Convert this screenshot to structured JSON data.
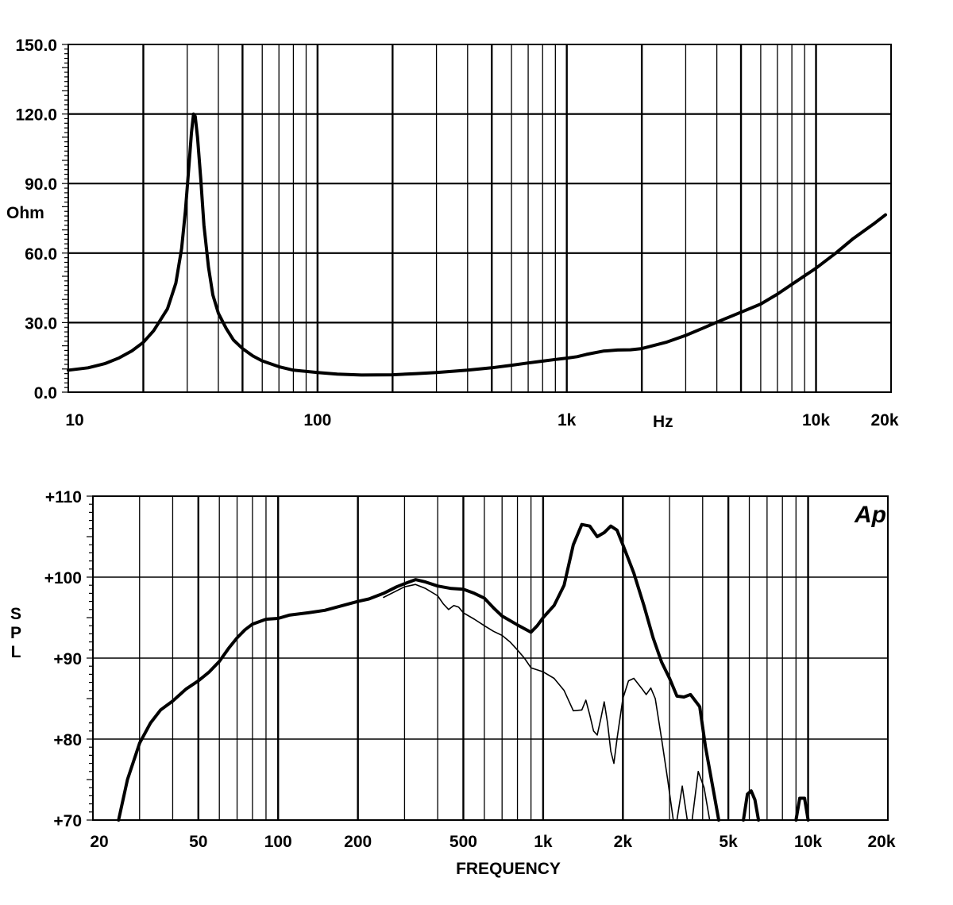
{
  "chart_data": [
    {
      "type": "line",
      "title": "",
      "ylabel": "Ohm",
      "xlabel": "Hz",
      "xscale": "log",
      "xlim": [
        10,
        20000
      ],
      "ylim": [
        0,
        150
      ],
      "yticks": [
        {
          "value": 0,
          "label": "0.0"
        },
        {
          "value": 30,
          "label": "30.0"
        },
        {
          "value": 60,
          "label": "60.0"
        },
        {
          "value": 90,
          "label": "90.0"
        },
        {
          "value": 120,
          "label": "120.0"
        },
        {
          "value": 150,
          "label": "150.0"
        }
      ],
      "xticks": [
        {
          "value": 10,
          "label": "10"
        },
        {
          "value": 100,
          "label": "100"
        },
        {
          "value": 1000,
          "label": "1k"
        },
        {
          "value": 10000,
          "label": "10k"
        },
        {
          "value": 20000,
          "label": "20k"
        }
      ],
      "grid": true,
      "series": [
        {
          "line_weight": "thick",
          "points": [
            [
              10,
              9.5
            ],
            [
              12,
              10.5
            ],
            [
              14,
              12.3
            ],
            [
              16,
              14.8
            ],
            [
              18,
              17.8
            ],
            [
              20,
              21.5
            ],
            [
              22,
              26.5
            ],
            [
              25,
              36
            ],
            [
              27,
              47
            ],
            [
              28.5,
              62
            ],
            [
              29.5,
              78
            ],
            [
              30.5,
              98
            ],
            [
              31.2,
              112
            ],
            [
              31.8,
              120
            ],
            [
              32.3,
              119
            ],
            [
              33,
              110
            ],
            [
              34,
              92
            ],
            [
              35,
              72
            ],
            [
              36.5,
              54
            ],
            [
              38,
              42
            ],
            [
              40,
              34
            ],
            [
              43,
              27.5
            ],
            [
              46,
              22.5
            ],
            [
              50,
              18.8
            ],
            [
              55,
              15.6
            ],
            [
              60,
              13.5
            ],
            [
              70,
              11
            ],
            [
              80,
              9.5
            ],
            [
              100,
              8.5
            ],
            [
              120,
              7.8
            ],
            [
              150,
              7.4
            ],
            [
              200,
              7.5
            ],
            [
              250,
              8
            ],
            [
              300,
              8.5
            ],
            [
              400,
              9.5
            ],
            [
              500,
              10.5
            ],
            [
              600,
              11.6
            ],
            [
              700,
              12.6
            ],
            [
              800,
              13.4
            ],
            [
              900,
              14.1
            ],
            [
              1000,
              14.7
            ],
            [
              1100,
              15.3
            ],
            [
              1200,
              16.3
            ],
            [
              1400,
              17.7
            ],
            [
              1600,
              18.2
            ],
            [
              1800,
              18.3
            ],
            [
              2000,
              18.8
            ],
            [
              2500,
              21.5
            ],
            [
              3000,
              24.5
            ],
            [
              3500,
              27.5
            ],
            [
              4000,
              30.2
            ],
            [
              5000,
              34.5
            ],
            [
              6000,
              38
            ],
            [
              7000,
              42.3
            ],
            [
              8000,
              46.5
            ],
            [
              10000,
              53.5
            ],
            [
              12000,
              60
            ],
            [
              14000,
              66
            ],
            [
              17000,
              72.5
            ],
            [
              19000,
              76.5
            ]
          ]
        }
      ]
    },
    {
      "type": "line",
      "title": "",
      "ylabel": "SPL",
      "xlabel": "FREQUENCY",
      "xscale": "log",
      "xlim": [
        20,
        20000
      ],
      "ylim": [
        70,
        110
      ],
      "yticks": [
        {
          "value": 70,
          "label": "+70"
        },
        {
          "value": 80,
          "label": "+80"
        },
        {
          "value": 90,
          "label": "+90"
        },
        {
          "value": 100,
          "label": "+100"
        },
        {
          "value": 110,
          "label": "+110"
        }
      ],
      "xticks": [
        {
          "value": 20,
          "label": "20"
        },
        {
          "value": 50,
          "label": "50"
        },
        {
          "value": 100,
          "label": "100"
        },
        {
          "value": 200,
          "label": "200"
        },
        {
          "value": 500,
          "label": "500"
        },
        {
          "value": 1000,
          "label": "1k"
        },
        {
          "value": 2000,
          "label": "2k"
        },
        {
          "value": 5000,
          "label": "5k"
        },
        {
          "value": 10000,
          "label": "10k"
        },
        {
          "value": 20000,
          "label": "20k"
        }
      ],
      "grid": true,
      "logo": "Ap",
      "series": [
        {
          "line_weight": "thick",
          "segments": [
            [
              [
                25,
                70
              ],
              [
                27,
                75
              ],
              [
                30,
                79.5
              ],
              [
                33,
                82
              ],
              [
                36,
                83.6
              ],
              [
                40,
                84.7
              ],
              [
                45,
                86.2
              ],
              [
                50,
                87.2
              ],
              [
                55,
                88.3
              ],
              [
                60,
                89.6
              ],
              [
                65,
                91.2
              ],
              [
                70,
                92.5
              ],
              [
                75,
                93.5
              ],
              [
                80,
                94.2
              ],
              [
                90,
                94.8
              ],
              [
                100,
                94.9
              ],
              [
                110,
                95.3
              ],
              [
                130,
                95.6
              ],
              [
                150,
                95.9
              ],
              [
                180,
                96.6
              ],
              [
                200,
                97
              ],
              [
                220,
                97.3
              ],
              [
                250,
                98
              ],
              [
                280,
                98.8
              ],
              [
                300,
                99.2
              ],
              [
                330,
                99.7
              ],
              [
                360,
                99.4
              ],
              [
                400,
                98.9
              ],
              [
                450,
                98.6
              ],
              [
                500,
                98.5
              ],
              [
                550,
                98
              ],
              [
                600,
                97.4
              ],
              [
                650,
                96.2
              ],
              [
                700,
                95.2
              ],
              [
                800,
                94.1
              ],
              [
                900,
                93.2
              ],
              [
                950,
                94
              ],
              [
                1000,
                95
              ],
              [
                1100,
                96.5
              ],
              [
                1200,
                99
              ],
              [
                1300,
                104
              ],
              [
                1400,
                106.5
              ],
              [
                1500,
                106.3
              ],
              [
                1600,
                105
              ],
              [
                1700,
                105.5
              ],
              [
                1800,
                106.3
              ],
              [
                1900,
                105.8
              ],
              [
                2000,
                104
              ],
              [
                2200,
                100.5
              ],
              [
                2400,
                96.5
              ],
              [
                2600,
                92.5
              ],
              [
                2800,
                89.5
              ],
              [
                3000,
                87.5
              ],
              [
                3200,
                85.3
              ],
              [
                3400,
                85.2
              ],
              [
                3600,
                85.5
              ],
              [
                3900,
                84
              ],
              [
                4100,
                79
              ],
              [
                4400,
                73.5
              ],
              [
                4600,
                70
              ]
            ],
            [
              [
                5700,
                70
              ],
              [
                5900,
                73.2
              ],
              [
                6100,
                73.6
              ],
              [
                6300,
                72.5
              ],
              [
                6500,
                70
              ]
            ],
            [
              [
                9000,
                70
              ],
              [
                9300,
                72.7
              ],
              [
                9700,
                72.7
              ],
              [
                10000,
                70
              ]
            ]
          ]
        },
        {
          "line_weight": "thin",
          "segments": [
            [
              [
                250,
                97.5
              ],
              [
                300,
                98.8
              ],
              [
                330,
                99.1
              ],
              [
                360,
                98.6
              ],
              [
                400,
                97.7
              ],
              [
                420,
                96.7
              ],
              [
                440,
                96
              ],
              [
                460,
                96.5
              ],
              [
                480,
                96.3
              ],
              [
                500,
                95.6
              ],
              [
                550,
                94.8
              ],
              [
                600,
                94
              ],
              [
                650,
                93.3
              ],
              [
                700,
                92.8
              ],
              [
                750,
                92
              ],
              [
                800,
                91
              ],
              [
                850,
                90
              ],
              [
                900,
                88.8
              ],
              [
                1000,
                88.3
              ],
              [
                1100,
                87.5
              ],
              [
                1200,
                86
              ],
              [
                1300,
                83.5
              ],
              [
                1400,
                83.6
              ],
              [
                1450,
                84.8
              ],
              [
                1500,
                83
              ],
              [
                1550,
                81
              ],
              [
                1600,
                80.5
              ],
              [
                1650,
                82.5
              ],
              [
                1700,
                84.6
              ],
              [
                1750,
                82
              ],
              [
                1800,
                78.5
              ],
              [
                1850,
                77
              ],
              [
                1900,
                80
              ],
              [
                2000,
                85
              ],
              [
                2100,
                87.2
              ],
              [
                2200,
                87.5
              ],
              [
                2350,
                86.3
              ],
              [
                2450,
                85.5
              ],
              [
                2550,
                86.3
              ],
              [
                2650,
                85
              ],
              [
                2800,
                80
              ],
              [
                2950,
                75
              ],
              [
                3100,
                70
              ]
            ],
            [
              [
                3200,
                70
              ],
              [
                3350,
                74.2
              ],
              [
                3500,
                70
              ]
            ],
            [
              [
                3650,
                70
              ],
              [
                3850,
                76
              ],
              [
                4050,
                74
              ],
              [
                4250,
                70
              ]
            ]
          ]
        }
      ]
    }
  ]
}
